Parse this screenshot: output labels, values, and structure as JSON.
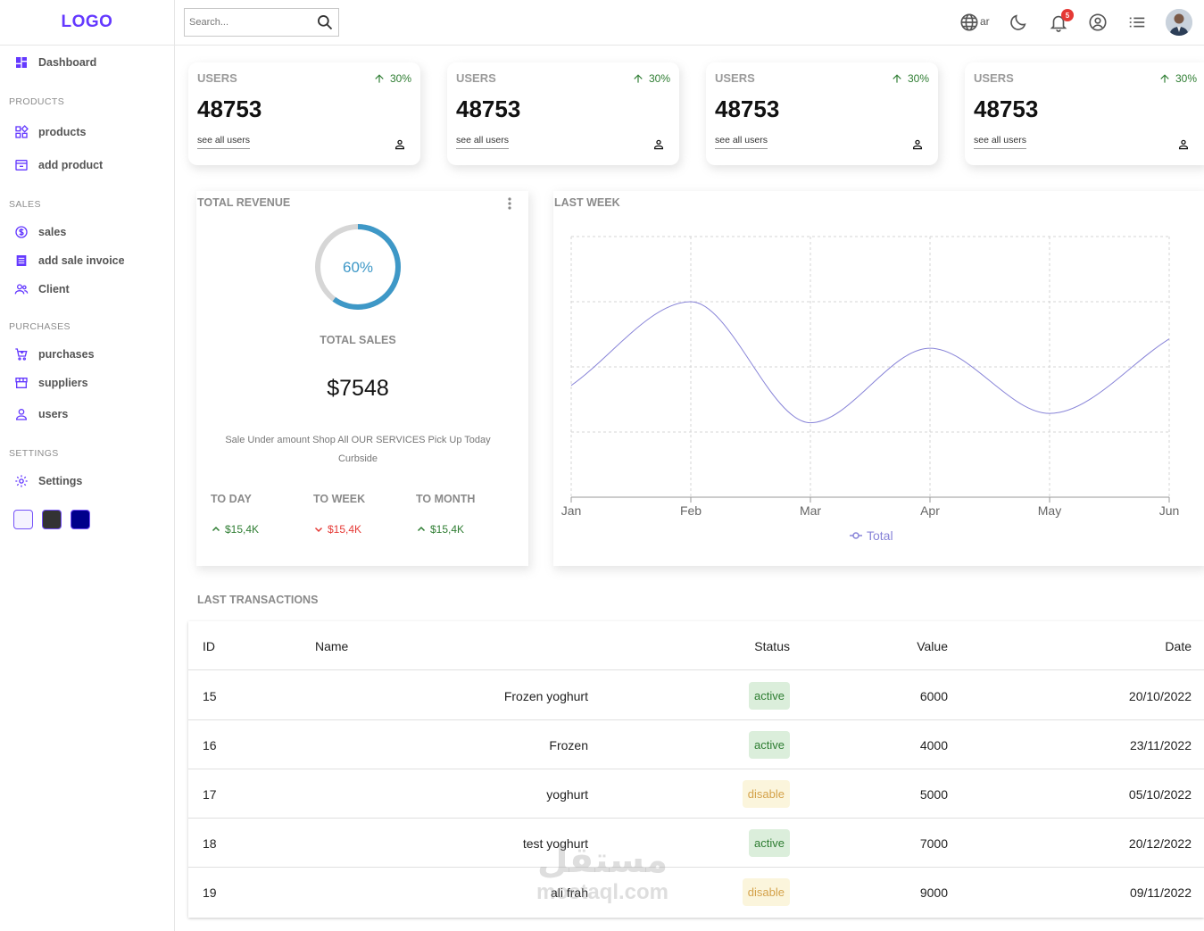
{
  "sidebar": {
    "logo": "LOGO",
    "dashboard": "Dashboard",
    "sections": {
      "products": "PRODUCTS",
      "sales": "SALES",
      "purchases": "PURCHASES",
      "settings": "SETTINGS"
    },
    "items": {
      "products": "products",
      "add_product": "add product",
      "sales": "sales",
      "add_sale_invoice": "add sale invoice",
      "client": "Client",
      "purchases": "purchases",
      "suppliers": "suppliers",
      "users": "users",
      "settings": "Settings"
    },
    "theme_swatches": [
      "#f5f3ff",
      "#333333",
      "#00008b"
    ],
    "accent": "#6439ff"
  },
  "topbar": {
    "search_placeholder": "Search...",
    "lang": "ar",
    "notifications": "5"
  },
  "widgets": [
    {
      "title": "USERS",
      "count": "48753",
      "link": "see all users",
      "percent": "30%"
    },
    {
      "title": "USERS",
      "count": "48753",
      "link": "see all users",
      "percent": "30%"
    },
    {
      "title": "USERS",
      "count": "48753",
      "link": "see all users",
      "percent": "30%"
    },
    {
      "title": "USERS",
      "count": "48753",
      "link": "see all users",
      "percent": "30%"
    }
  ],
  "featured": {
    "title": "TOTAL REVENUE",
    "progress_percent": 60,
    "progress_label": "60%",
    "sales_title": "TOTAL SALES",
    "amount": "$7548",
    "description": "Sale Under amount Shop All OUR SERVICES Pick Up Today Curbside",
    "summary": [
      {
        "title": "TO DAY",
        "value": "$15,4K",
        "trend": "up"
      },
      {
        "title": "TO WEEK",
        "value": "$15,4K",
        "trend": "down"
      },
      {
        "title": "TO MONTH",
        "value": "$15,4K",
        "trend": "up"
      }
    ],
    "colors": {
      "up": "#2e7d32",
      "down": "#e53935",
      "ring": "#3e98c7",
      "ring_track": "#d6d6d6"
    }
  },
  "chart_data": {
    "type": "line",
    "title": "LAST WEEK",
    "categories": [
      "Jan",
      "Feb",
      "Mar",
      "Apr",
      "May",
      "Jun"
    ],
    "series": [
      {
        "name": "Total",
        "values": [
          1200,
          2100,
          800,
          1600,
          900,
          1700
        ],
        "color": "#8884d8"
      }
    ],
    "ylim": [
      0,
      2800
    ],
    "grid": true,
    "legend": "bottom"
  },
  "transactions": {
    "title": "LAST TRANSACTIONS",
    "columns": [
      "ID",
      "Name",
      "Status",
      "Value",
      "Date"
    ],
    "rows": [
      {
        "id": "15",
        "name": "Frozen yoghurt",
        "status": "active",
        "value": "6000",
        "date": "20/10/2022"
      },
      {
        "id": "16",
        "name": "Frozen",
        "status": "active",
        "value": "4000",
        "date": "23/11/2022"
      },
      {
        "id": "17",
        "name": "yoghurt",
        "status": "disable",
        "value": "5000",
        "date": "05/10/2022"
      },
      {
        "id": "18",
        "name": "test yoghurt",
        "status": "active",
        "value": "7000",
        "date": "20/12/2022"
      },
      {
        "id": "19",
        "name": "ali frah",
        "status": "disable",
        "value": "9000",
        "date": "09/11/2022"
      }
    ]
  },
  "watermark": {
    "arabic": "مستقل",
    "latin": "mostaql.com"
  }
}
